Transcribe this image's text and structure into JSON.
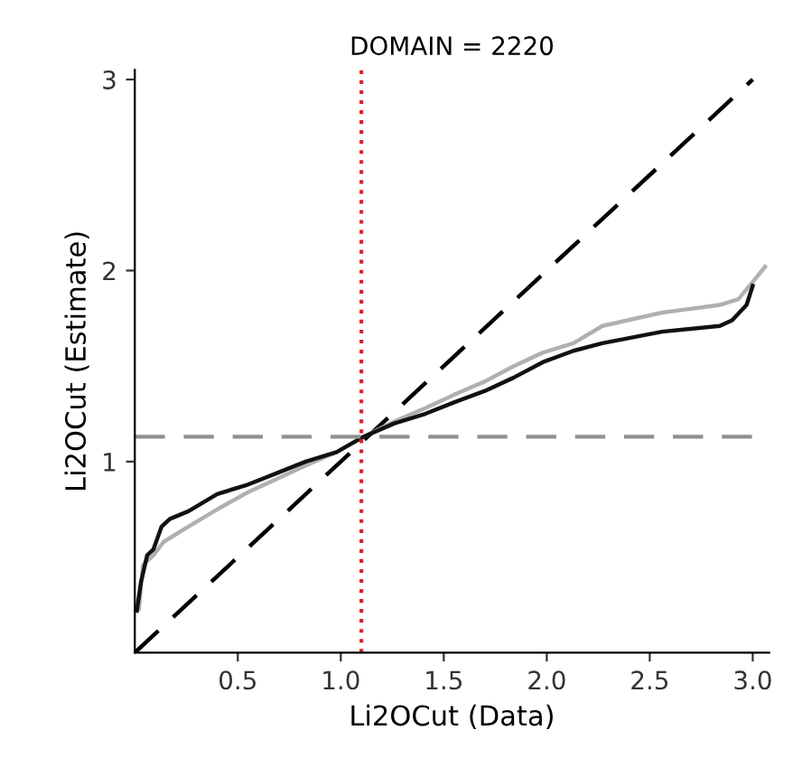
{
  "chart_data": {
    "type": "line",
    "title": "DOMAIN = 2220",
    "xlabel": "Li2OCut (Data)",
    "ylabel": "Li2OCut (Estimate)",
    "xlim": [
      0,
      3.08
    ],
    "ylim": [
      0,
      3.05
    ],
    "xticks": [
      0.5,
      {
        "value": 1,
        "label": "1.0"
      },
      1.5,
      {
        "value": 2,
        "label": "2.0"
      },
      2.5,
      {
        "value": 3,
        "label": "3.0"
      }
    ],
    "yticks": [
      1,
      2,
      3
    ],
    "grid": false,
    "legend": false,
    "marker": "none",
    "series": [
      {
        "color": "#000000",
        "line_style": "dashed",
        "x": [
          0,
          3.0
        ],
        "values": [
          0,
          3.0
        ]
      },
      {
        "color": "#b0b0b0",
        "line_style": "solid",
        "x": [
          0.02,
          0.04,
          0.09,
          0.14,
          0.26,
          0.4,
          0.55,
          0.69,
          0.83,
          0.98,
          1.11,
          1.26,
          1.41,
          1.55,
          1.7,
          1.84,
          1.98,
          2.13,
          2.27,
          2.56,
          2.84,
          2.93,
          3.0,
          3.06
        ],
        "values": [
          0.23,
          0.46,
          0.51,
          0.58,
          0.66,
          0.75,
          0.84,
          0.91,
          0.98,
          1.05,
          1.13,
          1.21,
          1.28,
          1.35,
          1.42,
          1.5,
          1.57,
          1.62,
          1.71,
          1.78,
          1.82,
          1.85,
          1.94,
          2.02
        ]
      },
      {
        "color": "#111111",
        "line_style": "solid",
        "x": [
          0.01,
          0.03,
          0.06,
          0.09,
          0.13,
          0.17,
          0.26,
          0.4,
          0.55,
          0.69,
          0.83,
          0.98,
          1.11,
          1.26,
          1.41,
          1.55,
          1.7,
          1.84,
          1.98,
          2.13,
          2.27,
          2.56,
          2.84,
          2.9,
          2.97,
          3.0
        ],
        "values": [
          0.22,
          0.37,
          0.51,
          0.54,
          0.66,
          0.7,
          0.74,
          0.83,
          0.88,
          0.94,
          1.0,
          1.05,
          1.13,
          1.2,
          1.25,
          1.31,
          1.37,
          1.44,
          1.52,
          1.58,
          1.62,
          1.68,
          1.71,
          1.74,
          1.82,
          1.92
        ]
      }
    ],
    "ref_lines": [
      {
        "axis": "x",
        "value": 1.1,
        "color": "#e0202a",
        "line_style": "dotted"
      },
      {
        "axis": "y",
        "value": 1.13,
        "color": "#909090",
        "line_style": "dashed"
      }
    ]
  }
}
